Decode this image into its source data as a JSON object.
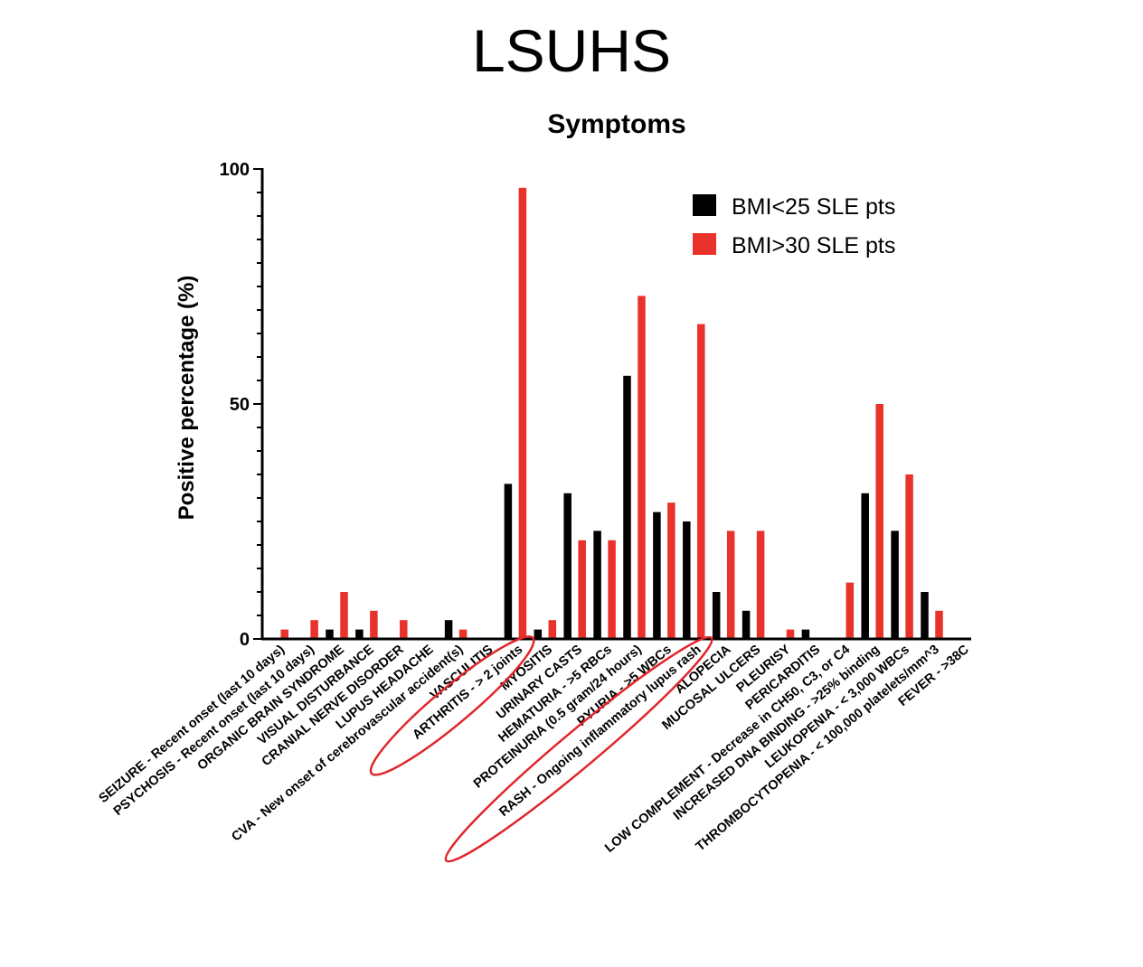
{
  "slide": {
    "title": "LSUHS"
  },
  "colors": {
    "bmi_lt25": "#000000",
    "bmi_gt30": "#e8322a",
    "highlight": "#e0262a"
  },
  "chart_data": {
    "type": "bar",
    "title": "Symptoms",
    "xlabel": "",
    "ylabel": "Positive percentage (%)",
    "ylim": [
      0,
      100
    ],
    "yticks": [
      0,
      50,
      100
    ],
    "legend_position": "top-right",
    "grid": false,
    "categories": [
      "SEIZURE - Recent onset (last 10 days)",
      "PSYCHOSIS - Recent onset (last 10 days)",
      "ORGANIC BRAIN SYNDROME",
      "VISUAL DISTURBANCE",
      "CRANIAL NERVE DISORDER",
      "LUPUS HEADACHE",
      "CVA - New onset of cerebrovascular accident(s)",
      "VASCULITIS",
      "ARTHRITIS - > 2 joints",
      "MYOSITIS",
      "URINARY CASTS",
      "HEMATURIA - >5 RBCs",
      "PROTEINURIA (0.5 gram/24 hours)",
      "PYURIA - >5 WBCs",
      "RASH - Ongoing inflammatory lupus rash",
      "ALOPECIA",
      "MUCOSAL ULCERS",
      "PLEURISY",
      "PERICARDITIS",
      "LOW COMPLEMENT - Decrease in CH50, C3, or C4",
      "INCREASED DNA BINDING - >25% binding",
      "LEUKOPENIA - < 3,000 WBCs",
      "THROMBOCYTOPENIA - < 100,000 platelets/mm^3",
      "FEVER - >38C"
    ],
    "series": [
      {
        "name": "BMI<25 SLE pts",
        "color": "#000000",
        "values": [
          0,
          0,
          2,
          2,
          0,
          0,
          4,
          0,
          33,
          2,
          31,
          23,
          56,
          27,
          25,
          10,
          6,
          0,
          2,
          0,
          31,
          23,
          10,
          0
        ]
      },
      {
        "name": "BMI>30 SLE pts",
        "color": "#e8322a",
        "values": [
          2,
          4,
          10,
          6,
          4,
          0,
          2,
          0,
          96,
          4,
          21,
          21,
          73,
          29,
          67,
          23,
          23,
          2,
          0,
          12,
          50,
          35,
          6,
          0
        ]
      }
    ],
    "highlighted_categories": [
      "ARTHRITIS - > 2 joints",
      "RASH - Ongoing inflammatory lupus rash"
    ]
  }
}
